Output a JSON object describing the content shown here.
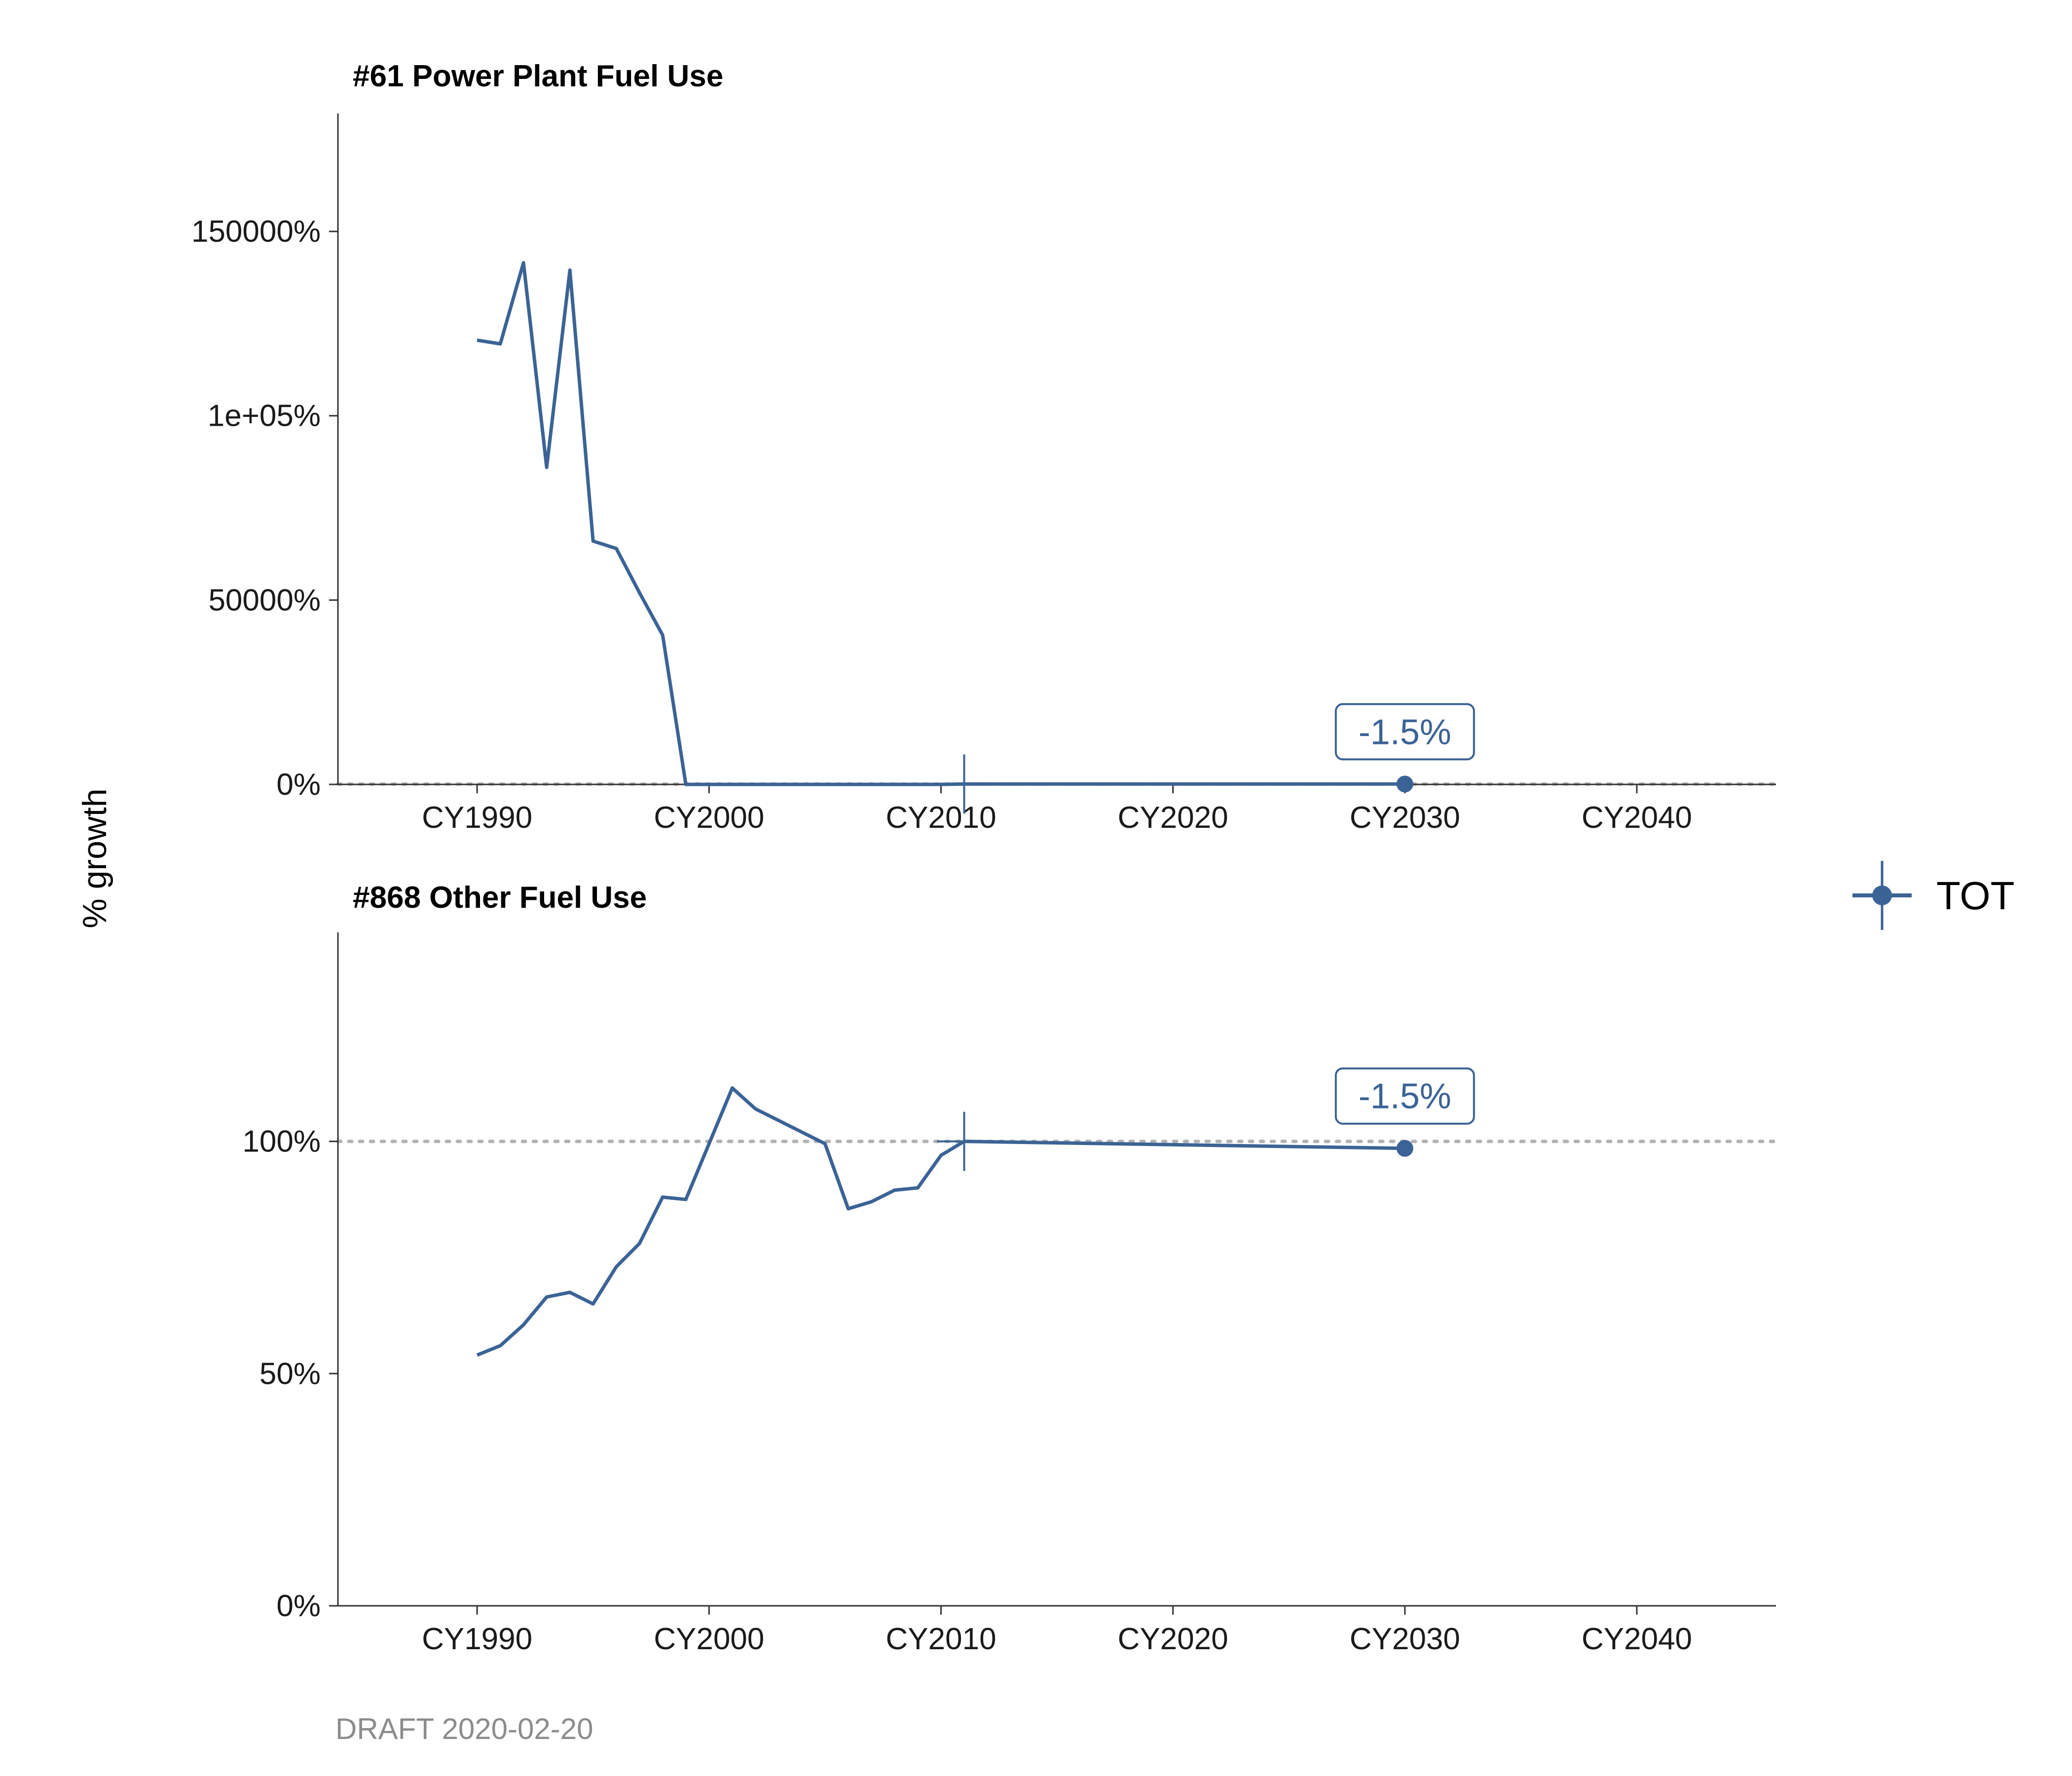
{
  "ylabel": "% growth",
  "caption": "DRAFT 2020-02-20",
  "legend": {
    "label": "TOT",
    "position": "right",
    "color": "#3b6395"
  },
  "colors": {
    "series": "#3b6395",
    "axis": "#333333",
    "reference": "#b3b3b3"
  },
  "chart_data": [
    {
      "type": "line",
      "title": "#61 Power Plant Fuel Use",
      "xlim": [
        1984,
        2046
      ],
      "ylim": [
        0,
        182000
      ],
      "x_ticks": [
        1990,
        2000,
        2010,
        2020,
        2030,
        2040
      ],
      "x_tick_labels": [
        "CY1990",
        "CY2000",
        "CY2010",
        "CY2020",
        "CY2030",
        "CY2040"
      ],
      "y_ticks": [
        0,
        50000,
        100000,
        150000
      ],
      "y_tick_labels": [
        "0%",
        "50000%",
        "1e+05%",
        "150000%"
      ],
      "reference_line": 100,
      "base_year": 2011,
      "series": [
        {
          "name": "TOT",
          "x": [
            1990,
            1991,
            1992,
            1993,
            1994,
            1995,
            1996,
            1997,
            1998,
            1999,
            2000,
            2005,
            2010,
            2011
          ],
          "values": [
            120500,
            119500,
            141500,
            86000,
            139500,
            66000,
            64000,
            52000,
            40500,
            0,
            0,
            0,
            0,
            100
          ]
        }
      ],
      "projection": {
        "x": [
          2011,
          2030
        ],
        "values": [
          100,
          98.5
        ]
      },
      "end_point": {
        "x": 2030,
        "value": 98.5
      },
      "annotation": {
        "text": "-1.5%",
        "x": 2030
      }
    },
    {
      "type": "line",
      "title": "#868 Other Fuel Use",
      "xlim": [
        1984,
        2046
      ],
      "ylim": [
        0,
        145
      ],
      "x_ticks": [
        1990,
        2000,
        2010,
        2020,
        2030,
        2040
      ],
      "x_tick_labels": [
        "CY1990",
        "CY2000",
        "CY2010",
        "CY2020",
        "CY2030",
        "CY2040"
      ],
      "y_ticks": [
        0,
        50,
        100
      ],
      "y_tick_labels": [
        "0%",
        "50%",
        "100%"
      ],
      "reference_line": 100,
      "base_year": 2011,
      "series": [
        {
          "name": "TOT",
          "x": [
            1990,
            1991,
            1992,
            1993,
            1994,
            1995,
            1996,
            1997,
            1998,
            1999,
            2000,
            2001,
            2002,
            2003,
            2004,
            2005,
            2006,
            2007,
            2008,
            2009,
            2010,
            2011
          ],
          "values": [
            54,
            56,
            60.5,
            66.5,
            67.5,
            65,
            73,
            78,
            88,
            87.5,
            99.5,
            111.5,
            107,
            104.5,
            102,
            99.5,
            85.5,
            87,
            89.5,
            90,
            97,
            100
          ]
        }
      ],
      "projection": {
        "x": [
          2011,
          2030
        ],
        "values": [
          100,
          98.5
        ]
      },
      "end_point": {
        "x": 2030,
        "value": 98.5
      },
      "annotation": {
        "text": "-1.5%",
        "x": 2030
      }
    }
  ]
}
